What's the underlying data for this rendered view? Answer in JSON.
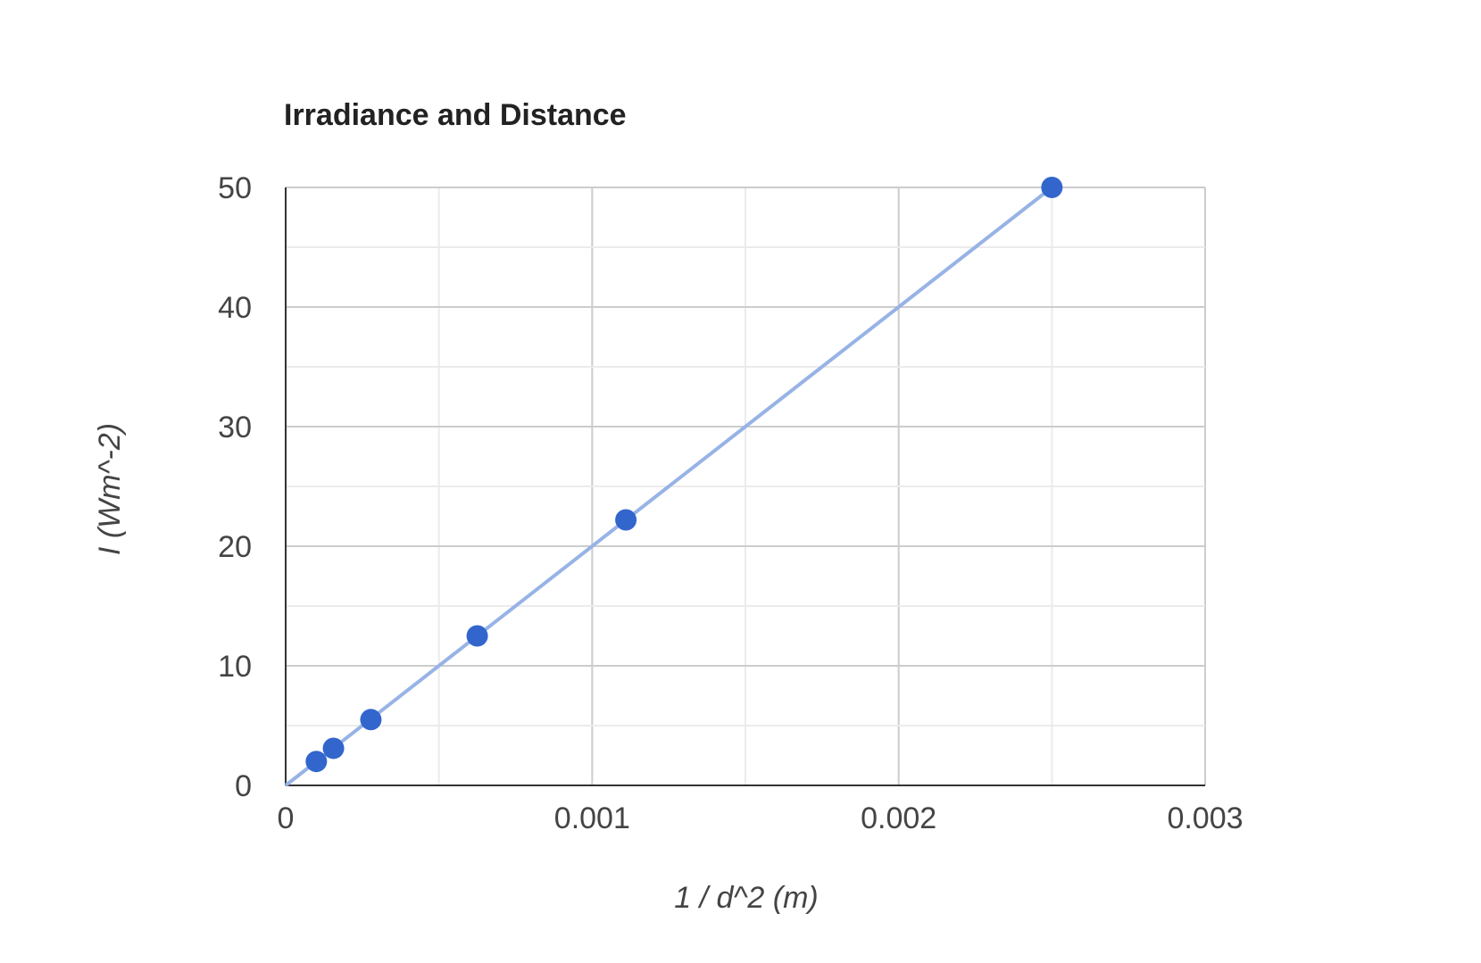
{
  "chart_data": {
    "type": "scatter",
    "title": "Irradiance and Distance",
    "xlabel": "1 / d^2 (m)",
    "ylabel": "I (Wm^-2)",
    "xlim": [
      0,
      0.003
    ],
    "ylim": [
      0,
      50
    ],
    "x_ticks": [
      "0",
      "0.001",
      "0.002",
      "0.003"
    ],
    "y_ticks": [
      "0",
      "10",
      "20",
      "30",
      "40",
      "50"
    ],
    "grid": true,
    "legend": "none",
    "series": [
      {
        "points": [
          {
            "x": 0.0001,
            "y": 2.0
          },
          {
            "x": 0.000156,
            "y": 3.1
          },
          {
            "x": 0.000278,
            "y": 5.5
          },
          {
            "x": 0.000625,
            "y": 12.5
          },
          {
            "x": 0.00111,
            "y": 22.2
          },
          {
            "x": 0.0025,
            "y": 50.0
          }
        ],
        "color": "#3366cc"
      }
    ],
    "trendline": {
      "type": "linear",
      "from": {
        "x": 0,
        "y": 0
      },
      "to": {
        "x": 0.0025,
        "y": 50
      },
      "color": "#97b3e6"
    }
  }
}
